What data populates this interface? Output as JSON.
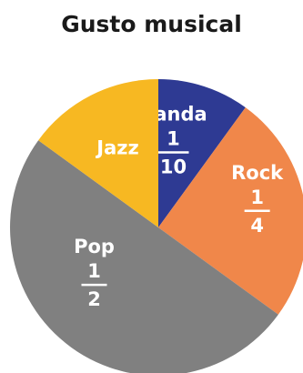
{
  "chart_data": {
    "type": "pie",
    "title": "Gusto musical",
    "slices": [
      {
        "label": "Banda",
        "value": 0.1,
        "numerator": "1",
        "denominator": "10",
        "color": "#2e3a93"
      },
      {
        "label": "Rock",
        "value": 0.25,
        "numerator": "1",
        "denominator": "4",
        "color": "#f0874a"
      },
      {
        "label": "Pop",
        "value": 0.5,
        "numerator": "1",
        "denominator": "2",
        "color": "#808080"
      },
      {
        "label": "Jazz",
        "value": 0.15,
        "color": "#f7b822"
      }
    ]
  }
}
